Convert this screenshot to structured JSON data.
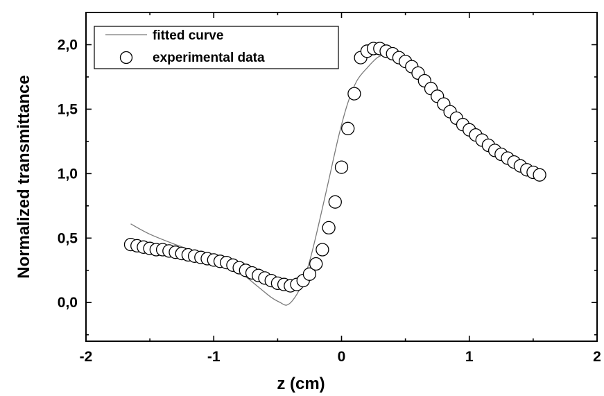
{
  "chart_data": {
    "type": "scatter",
    "title": "",
    "xlabel": "z (cm)",
    "ylabel": "Normalized transmittance",
    "xlim": [
      -2,
      2
    ],
    "ylim": [
      -0.3,
      2.25
    ],
    "x_ticks": [
      "-2",
      "-1",
      "0",
      "1",
      "2"
    ],
    "y_ticks": [
      "0,0",
      "0,5",
      "1,0",
      "1,5",
      "2,0"
    ],
    "legend_position": "top-left",
    "grid": false,
    "series": [
      {
        "name": "fitted curve",
        "kind": "line",
        "color": "#7a7a7a",
        "x": [
          -1.65,
          -1.5,
          -1.3,
          -1.1,
          -0.9,
          -0.75,
          -0.65,
          -0.55,
          -0.48,
          -0.43,
          -0.38,
          -0.32,
          -0.25,
          -0.18,
          -0.1,
          -0.02,
          0.05,
          0.12,
          0.2,
          0.28,
          0.33
        ],
        "y": [
          0.61,
          0.53,
          0.45,
          0.38,
          0.3,
          0.2,
          0.12,
          0.04,
          0.0,
          -0.02,
          0.02,
          0.12,
          0.32,
          0.6,
          0.95,
          1.3,
          1.55,
          1.72,
          1.82,
          1.9,
          1.92
        ]
      },
      {
        "name": "experimental data",
        "kind": "scatter",
        "color": "#000000",
        "x": [
          -1.65,
          -1.6,
          -1.55,
          -1.5,
          -1.45,
          -1.4,
          -1.35,
          -1.3,
          -1.25,
          -1.2,
          -1.15,
          -1.1,
          -1.05,
          -1.0,
          -0.95,
          -0.9,
          -0.85,
          -0.8,
          -0.75,
          -0.7,
          -0.65,
          -0.6,
          -0.55,
          -0.5,
          -0.45,
          -0.4,
          -0.35,
          -0.3,
          -0.25,
          -0.2,
          -0.15,
          -0.1,
          -0.05,
          0.0,
          0.05,
          0.1,
          0.15,
          0.2,
          0.25,
          0.3,
          0.35,
          0.4,
          0.45,
          0.5,
          0.55,
          0.6,
          0.65,
          0.7,
          0.75,
          0.8,
          0.85,
          0.9,
          0.95,
          1.0,
          1.05,
          1.1,
          1.15,
          1.2,
          1.25,
          1.3,
          1.35,
          1.4,
          1.45,
          1.5,
          1.55
        ],
        "y": [
          0.45,
          0.44,
          0.43,
          0.42,
          0.41,
          0.41,
          0.4,
          0.39,
          0.38,
          0.37,
          0.36,
          0.35,
          0.34,
          0.33,
          0.32,
          0.31,
          0.29,
          0.27,
          0.25,
          0.23,
          0.21,
          0.19,
          0.17,
          0.15,
          0.14,
          0.13,
          0.14,
          0.17,
          0.22,
          0.3,
          0.41,
          0.58,
          0.78,
          1.05,
          1.35,
          1.62,
          1.9,
          1.95,
          1.97,
          1.97,
          1.95,
          1.93,
          1.9,
          1.87,
          1.83,
          1.78,
          1.72,
          1.66,
          1.6,
          1.54,
          1.48,
          1.43,
          1.38,
          1.34,
          1.3,
          1.26,
          1.22,
          1.18,
          1.15,
          1.12,
          1.09,
          1.06,
          1.03,
          1.01,
          0.99
        ]
      }
    ]
  }
}
